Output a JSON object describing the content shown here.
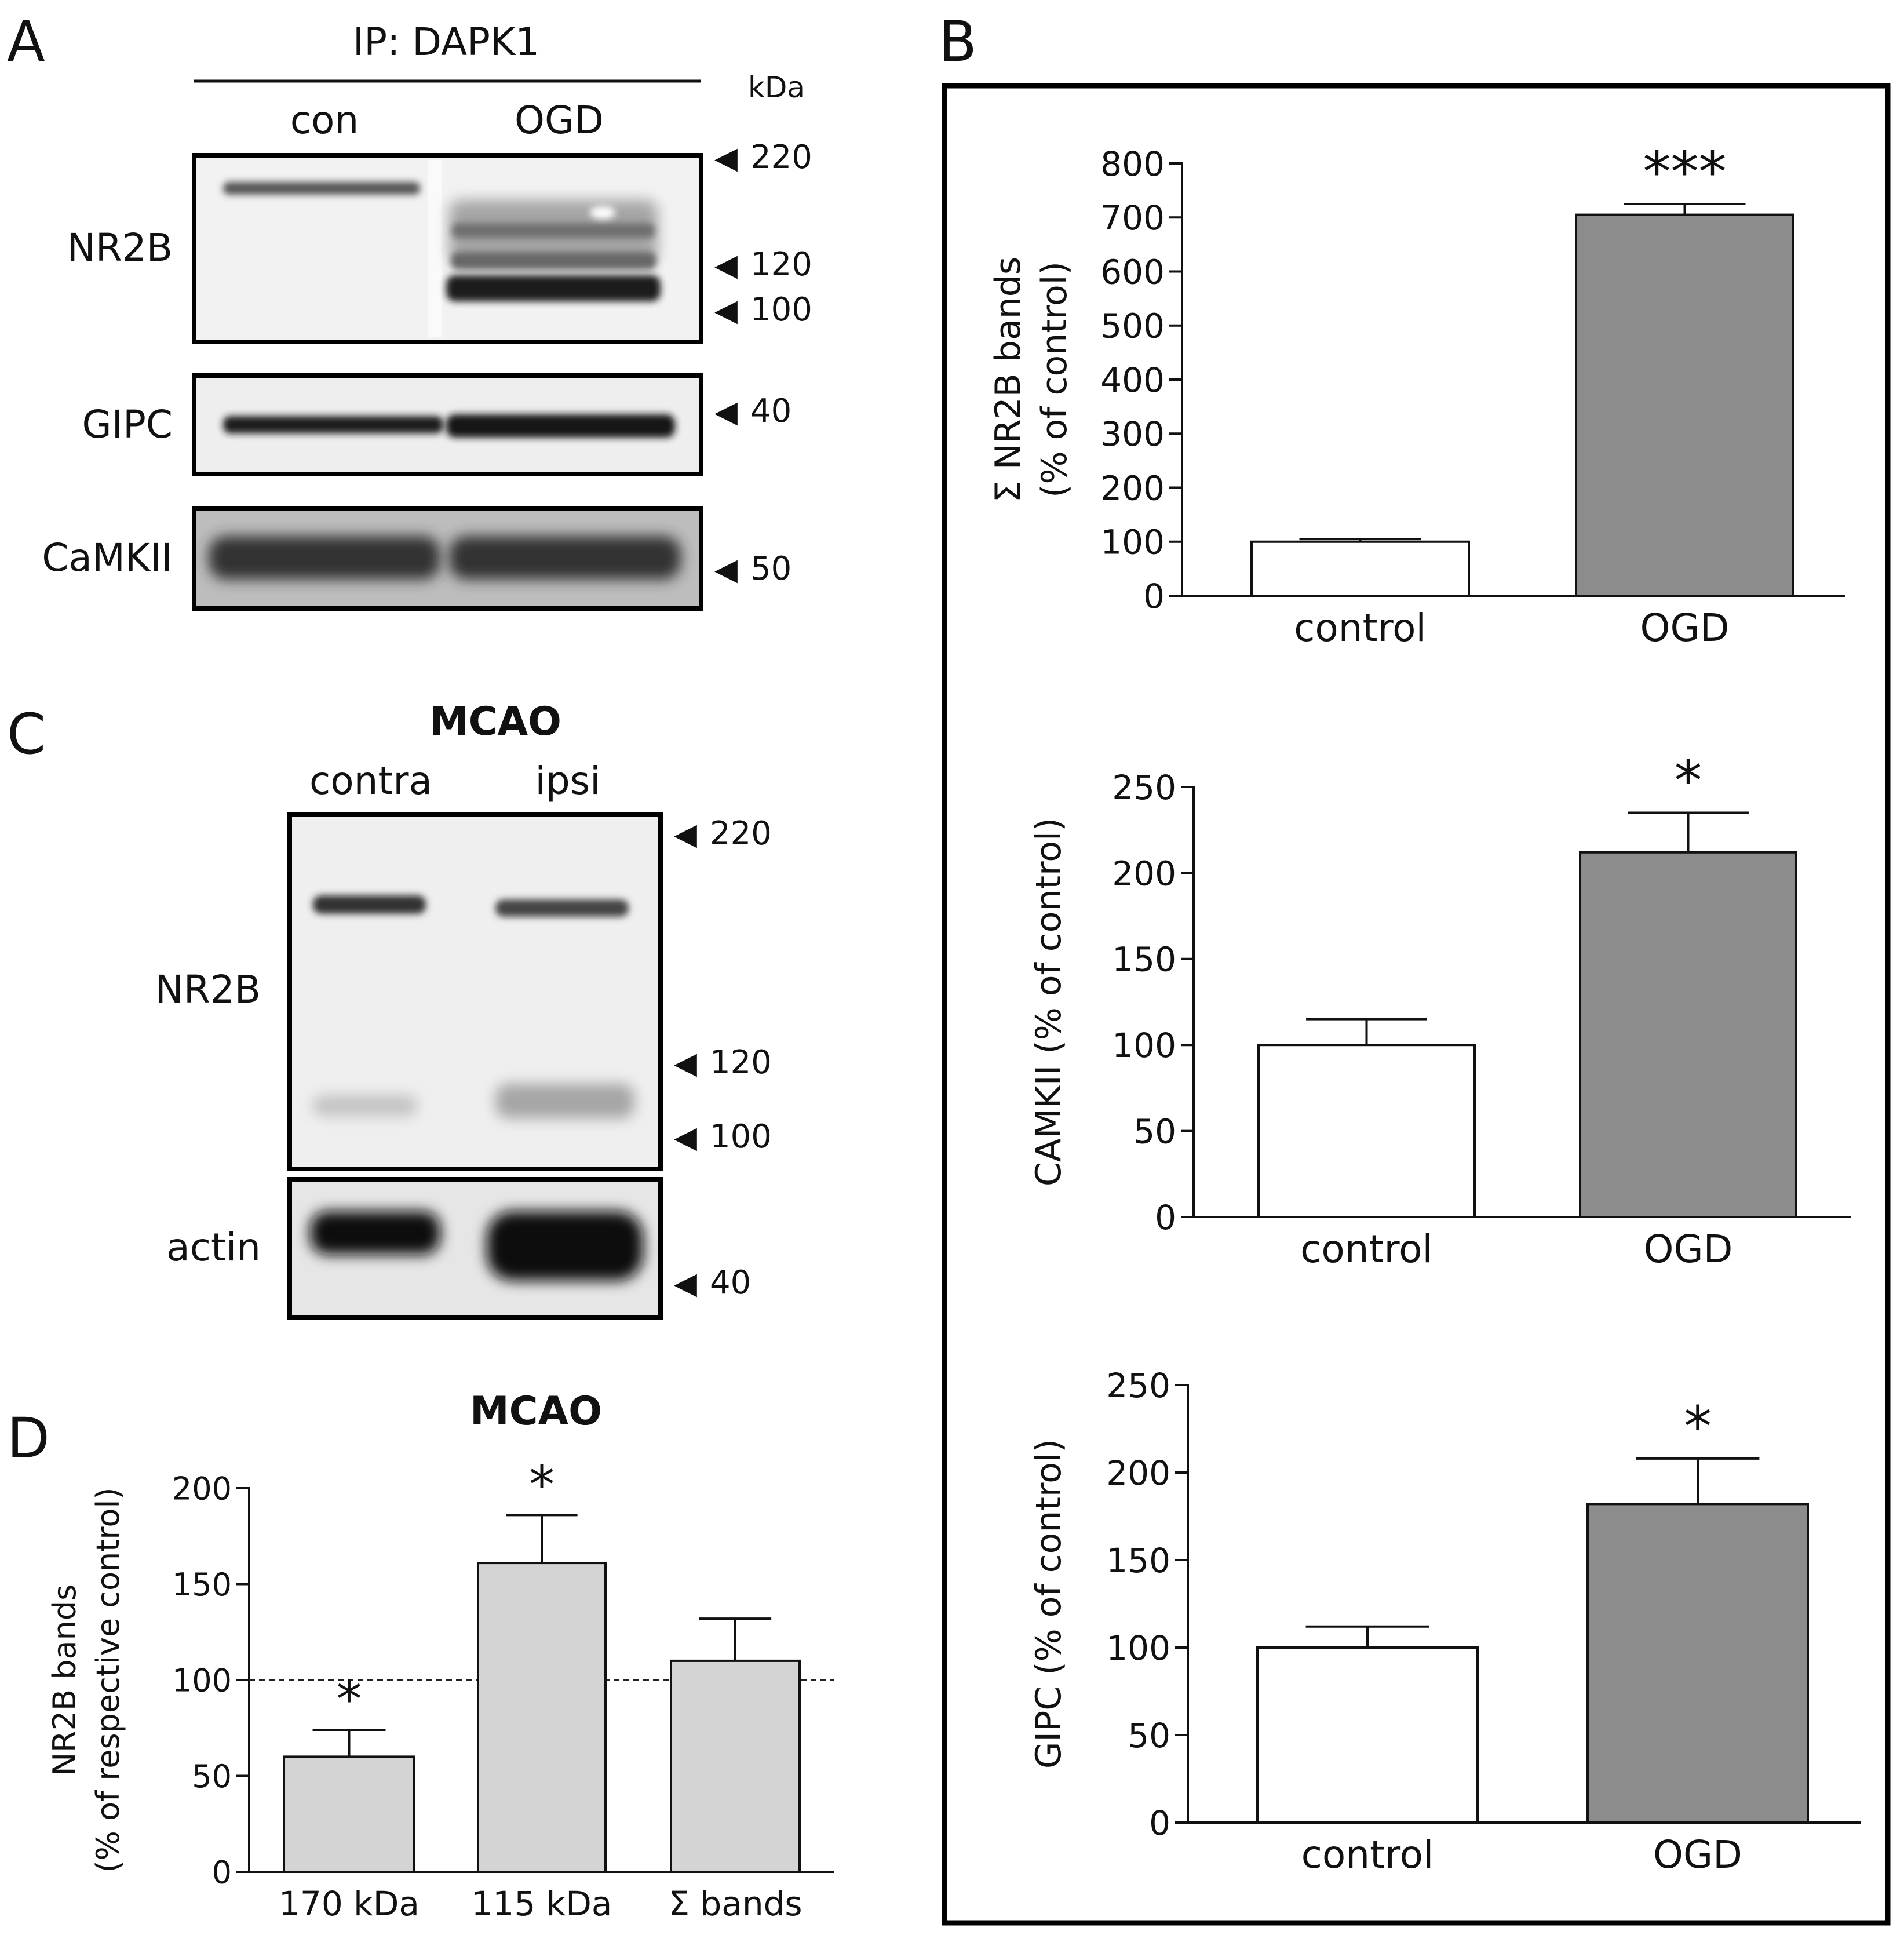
{
  "panel_letters": [
    "A",
    "B",
    "C",
    "D"
  ],
  "panelA": {
    "ip_label": "IP: DAPK1",
    "kda_label": "kDa",
    "lanes": [
      "con",
      "OGD"
    ],
    "rows": [
      {
        "label": "NR2B",
        "markers": [
          "220",
          "120",
          "100"
        ]
      },
      {
        "label": "GIPC",
        "markers": [
          "40"
        ]
      },
      {
        "label": "CaMKII",
        "markers": [
          "50"
        ]
      }
    ]
  },
  "panelC": {
    "title": "MCAO",
    "lanes": [
      "contra",
      "ipsi"
    ],
    "rows": [
      {
        "label": "NR2B",
        "markers": [
          "220",
          "120",
          "100"
        ]
      },
      {
        "label": "actin",
        "markers": [
          "40"
        ]
      }
    ]
  },
  "colors": {
    "control_bar": "#ffffff",
    "ogd_bar": "#8c8c8c",
    "mcao_bar": "#d4d4d4",
    "axis": "#111111"
  },
  "chart_data": [
    {
      "id": "B1",
      "type": "bar",
      "ylabel_lines": [
        "Σ NR2B bands",
        "(% of control)"
      ],
      "categories": [
        "control",
        "OGD"
      ],
      "values": [
        100,
        705
      ],
      "errors": [
        5,
        20
      ],
      "significance": [
        "",
        "***"
      ],
      "ylim": [
        0,
        800
      ],
      "yticks": [
        0,
        100,
        200,
        300,
        400,
        500,
        600,
        700,
        800
      ],
      "grid": false
    },
    {
      "id": "B2",
      "type": "bar",
      "ylabel_lines": [
        "CAMKII (% of control)"
      ],
      "categories": [
        "control",
        "OGD"
      ],
      "values": [
        100,
        212
      ],
      "errors": [
        15,
        23
      ],
      "significance": [
        "",
        "*"
      ],
      "ylim": [
        0,
        250
      ],
      "yticks": [
        0,
        50,
        100,
        150,
        200,
        250
      ],
      "grid": false
    },
    {
      "id": "B3",
      "type": "bar",
      "ylabel_lines": [
        "GIPC (% of control)"
      ],
      "categories": [
        "control",
        "OGD"
      ],
      "values": [
        100,
        182
      ],
      "errors": [
        12,
        26
      ],
      "significance": [
        "",
        "*"
      ],
      "ylim": [
        0,
        250
      ],
      "yticks": [
        0,
        50,
        100,
        150,
        200,
        250
      ],
      "grid": false
    },
    {
      "id": "D",
      "type": "bar",
      "title": "MCAO",
      "ylabel_lines": [
        "NR2B bands",
        "(% of respective control)"
      ],
      "categories": [
        "170 kDa",
        "115 kDa",
        "Σ bands"
      ],
      "values": [
        60,
        161,
        110
      ],
      "errors": [
        14,
        25,
        22
      ],
      "significance": [
        "*",
        "*",
        ""
      ],
      "reference_line": 100,
      "ylim": [
        0,
        200
      ],
      "yticks": [
        0,
        50,
        100,
        150,
        200
      ],
      "grid": false
    }
  ]
}
